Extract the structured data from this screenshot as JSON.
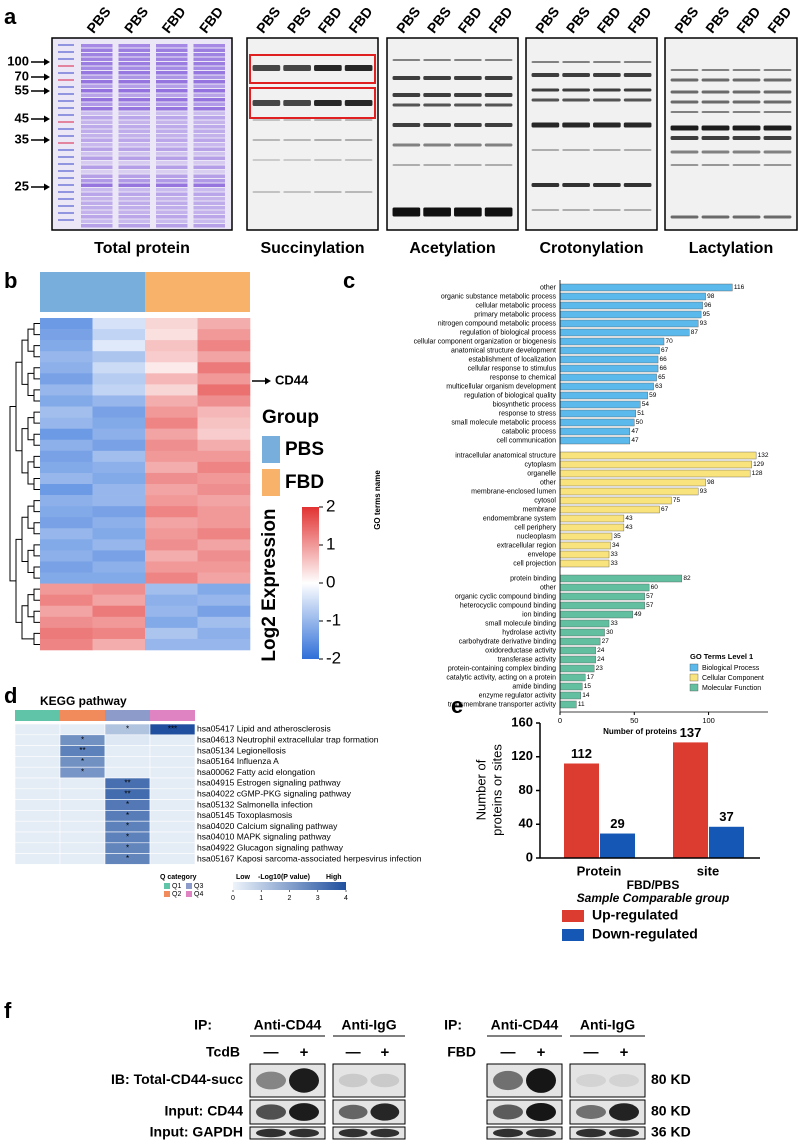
{
  "panel_labels": [
    "a",
    "b",
    "c",
    "d",
    "e",
    "f"
  ],
  "panel_a": {
    "markers": [
      100,
      70,
      55,
      45,
      35,
      25
    ],
    "blots": [
      {
        "caption": "Total protein",
        "lanes": [
          "PBS",
          "PBS",
          "FBD",
          "FBD"
        ]
      },
      {
        "caption": "Succinylation",
        "lanes": [
          "PBS",
          "PBS",
          "FBD",
          "FBD"
        ]
      },
      {
        "caption": "Acetylation",
        "lanes": [
          "PBS",
          "PBS",
          "FBD",
          "FBD"
        ]
      },
      {
        "caption": "Crotonylation",
        "lanes": [
          "PBS",
          "PBS",
          "FBD",
          "FBD"
        ]
      },
      {
        "caption": "Lactylation",
        "lanes": [
          "PBS",
          "PBS",
          "FBD",
          "FBD"
        ]
      }
    ]
  },
  "chart_data": [
    {
      "type": "clustermap",
      "annotation": "CD44",
      "legend_title": "Group",
      "groups": [
        {
          "name": "PBS",
          "color": "#78aedb"
        },
        {
          "name": "FBD",
          "color": "#f8b26a"
        }
      ],
      "colorbar_title": "Log2 Expression",
      "clim": [
        -2,
        2
      ],
      "cticks": [
        2,
        1,
        0,
        -1,
        -2
      ],
      "colors": [
        "#2f6fd8",
        "#ffffff",
        "#e23232"
      ],
      "values": [
        [
          -1.4,
          -0.4,
          0.4,
          0.8
        ],
        [
          -1.3,
          -0.6,
          0.3,
          1.0
        ],
        [
          -1.2,
          -0.3,
          0.6,
          1.2
        ],
        [
          -1.0,
          -0.8,
          0.5,
          0.9
        ],
        [
          -1.1,
          -0.5,
          0.2,
          1.3
        ],
        [
          -1.3,
          -0.7,
          0.7,
          1.0
        ],
        [
          -1.0,
          -0.6,
          0.4,
          1.4
        ],
        [
          -1.2,
          -1.0,
          0.8,
          1.1
        ],
        [
          -0.9,
          -1.3,
          1.0,
          0.7
        ],
        [
          -1.0,
          -1.2,
          1.2,
          0.6
        ],
        [
          -1.4,
          -1.1,
          0.9,
          0.5
        ],
        [
          -1.1,
          -1.3,
          1.1,
          0.8
        ],
        [
          -1.3,
          -0.9,
          1.0,
          1.0
        ],
        [
          -1.2,
          -1.1,
          0.8,
          1.2
        ],
        [
          -1.0,
          -1.2,
          1.1,
          1.0
        ],
        [
          -1.4,
          -1.0,
          0.9,
          1.1
        ],
        [
          -1.1,
          -1.0,
          1.0,
          0.9
        ],
        [
          -1.2,
          -1.3,
          1.2,
          1.0
        ],
        [
          -1.3,
          -1.1,
          0.9,
          1.0
        ],
        [
          -1.0,
          -1.2,
          1.0,
          1.2
        ],
        [
          -1.2,
          -1.0,
          1.1,
          0.9
        ],
        [
          -1.1,
          -1.3,
          0.8,
          1.1
        ],
        [
          -1.3,
          -1.1,
          1.0,
          1.0
        ],
        [
          -1.2,
          -1.2,
          1.2,
          0.9
        ],
        [
          1.0,
          1.1,
          -0.9,
          -1.2
        ],
        [
          1.2,
          0.9,
          -1.1,
          -1.0
        ],
        [
          0.9,
          1.3,
          -1.0,
          -1.3
        ],
        [
          1.1,
          1.0,
          -1.2,
          -0.9
        ],
        [
          1.3,
          1.2,
          -0.8,
          -1.1
        ],
        [
          1.2,
          0.8,
          -1.0,
          -1.0
        ]
      ]
    },
    {
      "type": "barh",
      "y_label": "GO terms name",
      "x_label": "Number of proteins",
      "xlim": [
        0,
        140
      ],
      "xticks": [
        0,
        50,
        100
      ],
      "legend_title": "GO Terms Level 1",
      "series": [
        {
          "name": "Biological Process",
          "color": "#5cb9ec",
          "categories": [
            "other",
            "organic substance metabolic process",
            "cellular metabolic process",
            "primary metabolic process",
            "nitrogen compound metabolic process",
            "regulation of biological process",
            "cellular component organization or biogenesis",
            "anatomical structure development",
            "establishment of localization",
            "cellular response to stimulus",
            "response to chemical",
            "multicellular organism development",
            "regulation of biological quality",
            "biosynthetic process",
            "response to stress",
            "small molecule metabolic process",
            "catabolic process",
            "cell communication"
          ],
          "values": [
            116,
            98,
            96,
            95,
            93,
            87,
            70,
            67,
            66,
            66,
            65,
            63,
            59,
            54,
            51,
            50,
            47,
            47
          ]
        },
        {
          "name": "Cellular Component",
          "color": "#f9e37c",
          "categories": [
            "intracellular anatomical structure",
            "cytoplasm",
            "organelle",
            "other",
            "membrane-enclosed lumen",
            "cytosol",
            "membrane",
            "endomembrane system",
            "cell periphery",
            "nucleoplasm",
            "extracellular region",
            "envelope",
            "cell projection"
          ],
          "values": [
            132,
            129,
            128,
            98,
            93,
            75,
            67,
            43,
            43,
            35,
            34,
            33,
            33
          ]
        },
        {
          "name": "Molecular Function",
          "color": "#62c0a0",
          "categories": [
            "protein binding",
            "other",
            "organic cyclic compound binding",
            "heterocyclic compound binding",
            "ion binding",
            "small molecule binding",
            "hydrolase activity",
            "carbohydrate derivative binding",
            "oxidoreductase activity",
            "transferase activity",
            "protein-containing complex binding",
            "catalytic activity, acting on a protein",
            "amide binding",
            "enzyme regulator activity",
            "transmembrane transporter activity"
          ],
          "values": [
            82,
            60,
            57,
            57,
            49,
            33,
            30,
            27,
            24,
            24,
            23,
            17,
            15,
            14,
            11
          ]
        }
      ]
    },
    {
      "type": "heatmap",
      "title": "KEGG pathway",
      "columns": [
        "Q1",
        "Q2",
        "Q3",
        "Q4"
      ],
      "column_colors": [
        "#5fc4a8",
        "#f28b5b",
        "#8c9bc9",
        "#e083c2"
      ],
      "rows": [
        "hsa05417 Lipid and atherosclerosis",
        "hsa04613 Neutrophil extracellular trap formation",
        "hsa05134 Legionellosis",
        "hsa05164 Influenza A",
        "hsa00062 Fatty acid elongation",
        "hsa04915 Estrogen signaling pathway",
        "hsa04022 cGMP-PKG signaling pathway",
        "hsa05132 Salmonella infection",
        "hsa05145 Toxoplasmosis",
        "hsa04020 Calcium signaling pathway",
        "hsa04010 MAPK signaling pathway",
        "hsa04922 Glucagon signaling pathway",
        "hsa05167 Kaposi sarcoma-associated herpesvirus infection"
      ],
      "values": [
        [
          0.2,
          0.2,
          1.2,
          4.0
        ],
        [
          0.2,
          2.4,
          0.3,
          0.2
        ],
        [
          0.2,
          2.8,
          0.2,
          0.2
        ],
        [
          0.2,
          2.4,
          0.2,
          0.2
        ],
        [
          0.2,
          2.3,
          0.2,
          0.2
        ],
        [
          0.2,
          0.2,
          3.2,
          0.2
        ],
        [
          0.2,
          0.2,
          3.3,
          0.2
        ],
        [
          0.2,
          0.2,
          3.0,
          0.2
        ],
        [
          0.2,
          0.2,
          2.9,
          0.2
        ],
        [
          0.2,
          0.2,
          2.8,
          0.2
        ],
        [
          0.2,
          0.2,
          2.8,
          0.2
        ],
        [
          0.2,
          0.2,
          2.7,
          0.2
        ],
        [
          0.2,
          0.2,
          2.7,
          0.2
        ]
      ],
      "stars": [
        [
          null,
          null,
          "*",
          "***"
        ],
        [
          null,
          "*",
          null,
          null
        ],
        [
          null,
          "**",
          null,
          null
        ],
        [
          null,
          "*",
          null,
          null
        ],
        [
          null,
          "*",
          null,
          null
        ],
        [
          null,
          null,
          "**",
          null
        ],
        [
          null,
          null,
          "**",
          null
        ],
        [
          null,
          null,
          "*",
          null
        ],
        [
          null,
          null,
          "*",
          null
        ],
        [
          null,
          null,
          "*",
          null
        ],
        [
          null,
          null,
          "*",
          null
        ],
        [
          null,
          null,
          "*",
          null
        ],
        [
          null,
          null,
          "*",
          null
        ]
      ],
      "legend_title": "Q category",
      "colorbar_low": "Low",
      "colorbar_title": "-Log10(P value)",
      "colorbar_high": "High",
      "clim": [
        0,
        4
      ],
      "cticks": [
        0,
        1,
        2,
        3,
        4
      ],
      "colors": [
        "#eef4fb",
        "#1f4f9e"
      ]
    },
    {
      "type": "bar",
      "y_label": [
        "Number of",
        "proteins or sites"
      ],
      "categories": [
        "Protein",
        "site"
      ],
      "x_label": "FBD/PBS",
      "subtitle": "Sample Comparable group",
      "ylim": [
        0,
        160
      ],
      "yticks": [
        0,
        40,
        80,
        120,
        160
      ],
      "series": [
        {
          "name": "Up-regulated",
          "color": "#dc3b2f",
          "values": [
            112,
            137
          ]
        },
        {
          "name": "Down-regulated",
          "color": "#1457b5",
          "values": [
            29,
            37
          ]
        }
      ]
    }
  ],
  "panel_f": {
    "ip_label": "IP:",
    "experiments": [
      {
        "ips": [
          "Anti-CD44",
          "Anti-IgG"
        ],
        "treatment": "TcdB",
        "signs": [
          "—",
          "+",
          "—",
          "+"
        ]
      },
      {
        "ips": [
          "Anti-CD44",
          "Anti-IgG"
        ],
        "treatment": "FBD",
        "signs": [
          "—",
          "+",
          "—",
          "+"
        ]
      }
    ],
    "rows": [
      {
        "label": "IB: Total-CD44-succ",
        "size": "80 KD"
      },
      {
        "label": "Input: CD44",
        "size": "80 KD"
      },
      {
        "label": "Input: GAPDH",
        "size": "36 KD"
      }
    ]
  }
}
